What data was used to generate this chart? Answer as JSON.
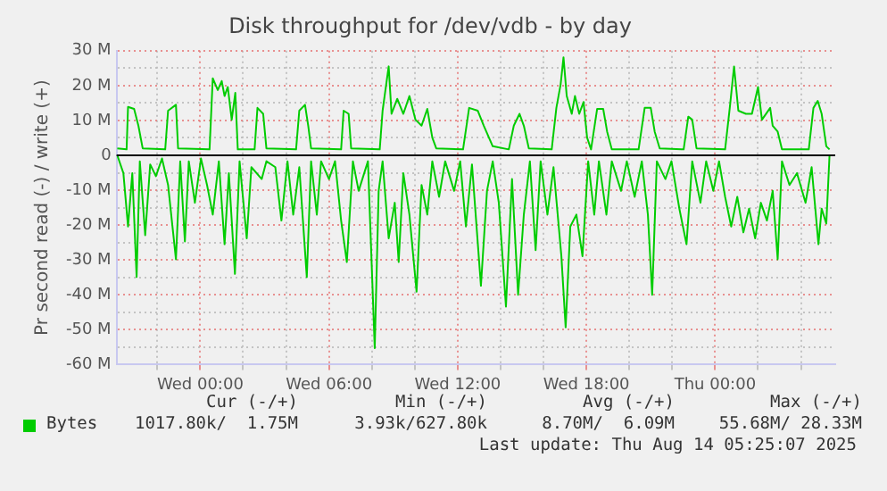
{
  "chart_data": {
    "type": "line",
    "title": "Disk throughput for /dev/vdb - by day",
    "ylabel": "Pr second read (-) / write (+)",
    "xlim": [
      "2025-08-12T20:06",
      "2025-08-14T05:36"
    ],
    "xticks": [
      {
        "value": "2025-08-12T22:00",
        "label": null
      },
      {
        "value": "2025-08-13T00:00",
        "label": "Wed 00:00"
      },
      {
        "value": "2025-08-13T02:00",
        "label": null
      },
      {
        "value": "2025-08-13T04:00",
        "label": null
      },
      {
        "value": "2025-08-13T06:00",
        "label": "Wed 06:00"
      },
      {
        "value": "2025-08-13T08:00",
        "label": null
      },
      {
        "value": "2025-08-13T10:00",
        "label": null
      },
      {
        "value": "2025-08-13T12:00",
        "label": "Wed 12:00"
      },
      {
        "value": "2025-08-13T14:00",
        "label": null
      },
      {
        "value": "2025-08-13T16:00",
        "label": null
      },
      {
        "value": "2025-08-13T18:00",
        "label": "Wed 18:00"
      },
      {
        "value": "2025-08-13T20:00",
        "label": null
      },
      {
        "value": "2025-08-13T22:00",
        "label": null
      },
      {
        "value": "2025-08-14T00:00",
        "label": "Thu 00:00"
      },
      {
        "value": "2025-08-14T02:00",
        "label": null
      },
      {
        "value": "2025-08-14T04:00",
        "label": null
      }
    ],
    "ylim": [
      -60,
      30
    ],
    "yticks": [
      {
        "value": -60,
        "label": "-60 M"
      },
      {
        "value": -55,
        "label": null
      },
      {
        "value": -50,
        "label": "-50 M"
      },
      {
        "value": -45,
        "label": null
      },
      {
        "value": -40,
        "label": "-40 M"
      },
      {
        "value": -35,
        "label": null
      },
      {
        "value": -30,
        "label": "-30 M"
      },
      {
        "value": -25,
        "label": null
      },
      {
        "value": -20,
        "label": "-20 M"
      },
      {
        "value": -15,
        "label": null
      },
      {
        "value": -10,
        "label": "-10 M"
      },
      {
        "value": -5,
        "label": null
      },
      {
        "value": 0,
        "label": "0"
      },
      {
        "value": 5,
        "label": null
      },
      {
        "value": 10,
        "label": "10 M"
      },
      {
        "value": 15,
        "label": null
      },
      {
        "value": 20,
        "label": "20 M"
      },
      {
        "value": 25,
        "label": null
      },
      {
        "value": 30,
        "label": "30 M"
      }
    ],
    "grid": true,
    "legend": "bottom",
    "marker": "none",
    "line_style": "solid",
    "ref_lines": [
      {
        "axis": "y",
        "value": 0,
        "color": "#000000"
      }
    ],
    "series": [
      {
        "name": "Bytes",
        "color": "#00cc00",
        "x": [
          "2025-08-12T20:08",
          "2025-08-12T20:34",
          "2025-08-12T20:38",
          "2025-08-12T20:55",
          "2025-08-12T21:07",
          "2025-08-12T21:19",
          "2025-08-12T22:22",
          "2025-08-12T22:30",
          "2025-08-12T22:52",
          "2025-08-12T22:58",
          "2025-08-13T00:26",
          "2025-08-13T00:35",
          "2025-08-13T00:49",
          "2025-08-13T01:00",
          "2025-08-13T01:08",
          "2025-08-13T01:17",
          "2025-08-13T01:28",
          "2025-08-13T01:38",
          "2025-08-13T01:45",
          "2025-08-13T02:32",
          "2025-08-13T02:40",
          "2025-08-13T02:56",
          "2025-08-13T03:05",
          "2025-08-13T04:28",
          "2025-08-13T04:37",
          "2025-08-13T04:53",
          "2025-08-13T05:02",
          "2025-08-13T05:10",
          "2025-08-13T06:34",
          "2025-08-13T06:41",
          "2025-08-13T06:55",
          "2025-08-13T07:02",
          "2025-08-13T08:22",
          "2025-08-13T08:30",
          "2025-08-13T08:47",
          "2025-08-13T08:55",
          "2025-08-13T09:11",
          "2025-08-13T09:28",
          "2025-08-13T09:45",
          "2025-08-13T10:02",
          "2025-08-13T10:19",
          "2025-08-13T10:35",
          "2025-08-13T10:49",
          "2025-08-13T11:00",
          "2025-08-13T12:15",
          "2025-08-13T12:32",
          "2025-08-13T12:56",
          "2025-08-13T13:13",
          "2025-08-13T13:38",
          "2025-08-13T14:23",
          "2025-08-13T14:37",
          "2025-08-13T14:53",
          "2025-08-13T15:05",
          "2025-08-13T15:19",
          "2025-08-13T16:23",
          "2025-08-13T16:36",
          "2025-08-13T16:48",
          "2025-08-13T16:56",
          "2025-08-13T17:05",
          "2025-08-13T17:19",
          "2025-08-13T17:28",
          "2025-08-13T17:40",
          "2025-08-13T17:52",
          "2025-08-13T18:02",
          "2025-08-13T18:13",
          "2025-08-13T18:30",
          "2025-08-13T18:47",
          "2025-08-13T18:58",
          "2025-08-13T19:11",
          "2025-08-13T20:26",
          "2025-08-13T20:43",
          "2025-08-13T21:00",
          "2025-08-13T21:11",
          "2025-08-13T21:25",
          "2025-08-13T22:32",
          "2025-08-13T22:45",
          "2025-08-13T22:56",
          "2025-08-13T23:08",
          "2025-08-14T00:28",
          "2025-08-14T00:41",
          "2025-08-14T00:53",
          "2025-08-14T01:05",
          "2025-08-14T01:26",
          "2025-08-14T01:43",
          "2025-08-14T02:00",
          "2025-08-14T02:11",
          "2025-08-14T02:34",
          "2025-08-14T02:41",
          "2025-08-14T02:55",
          "2025-08-14T03:07",
          "2025-08-14T04:22",
          "2025-08-14T04:35",
          "2025-08-14T04:47",
          "2025-08-14T04:58",
          "2025-08-14T05:11",
          "2025-08-14T05:20"
        ],
        "values": [
          2.0,
          1.7,
          13.9,
          13.3,
          8.5,
          2.0,
          1.7,
          12.8,
          14.5,
          2.0,
          1.7,
          22.1,
          18.7,
          21.3,
          17.0,
          19.6,
          10.2,
          17.9,
          1.7,
          1.7,
          13.6,
          11.9,
          2.0,
          1.7,
          12.8,
          14.5,
          8.5,
          2.0,
          1.7,
          12.8,
          11.9,
          2.0,
          1.7,
          12.8,
          25.5,
          11.9,
          16.2,
          11.9,
          17.0,
          10.2,
          8.5,
          13.3,
          5.1,
          2.0,
          1.7,
          13.6,
          12.8,
          8.5,
          2.6,
          1.7,
          8.5,
          11.9,
          8.5,
          2.0,
          1.7,
          13.6,
          20.4,
          28.1,
          17.0,
          11.9,
          17.0,
          11.9,
          15.3,
          5.1,
          1.7,
          13.3,
          13.3,
          6.8,
          1.7,
          1.7,
          13.6,
          13.6,
          6.8,
          2.0,
          1.7,
          11.1,
          10.2,
          2.0,
          1.7,
          13.6,
          25.5,
          12.8,
          11.9,
          11.9,
          19.6,
          10.2,
          13.6,
          8.5,
          6.8,
          1.7,
          1.7,
          13.6,
          15.6,
          11.9,
          2.6,
          1.7
        ]
      },
      {
        "color": "#00cc00",
        "x": [
          "2025-08-12T20:08",
          "2025-08-12T20:25",
          "2025-08-12T20:38",
          "2025-08-12T20:50",
          "2025-08-12T21:02",
          "2025-08-12T21:11",
          "2025-08-12T21:26",
          "2025-08-12T21:40",
          "2025-08-12T21:56",
          "2025-08-12T22:13",
          "2025-08-12T22:30",
          "2025-08-12T22:52",
          "2025-08-12T23:04",
          "2025-08-12T23:17",
          "2025-08-12T23:28",
          "2025-08-12T23:45",
          "2025-08-13T00:02",
          "2025-08-13T00:19",
          "2025-08-13T00:35",
          "2025-08-13T00:52",
          "2025-08-13T01:08",
          "2025-08-13T01:20",
          "2025-08-13T01:37",
          "2025-08-13T01:50",
          "2025-08-13T02:10",
          "2025-08-13T02:23",
          "2025-08-13T02:52",
          "2025-08-13T03:05",
          "2025-08-13T03:30",
          "2025-08-13T03:47",
          "2025-08-13T04:04",
          "2025-08-13T04:20",
          "2025-08-13T04:37",
          "2025-08-13T04:58",
          "2025-08-13T05:10",
          "2025-08-13T05:26",
          "2025-08-13T05:38",
          "2025-08-13T06:00",
          "2025-08-13T06:17",
          "2025-08-13T06:34",
          "2025-08-13T06:50",
          "2025-08-13T07:07",
          "2025-08-13T07:23",
          "2025-08-13T07:49",
          "2025-08-13T08:08",
          "2025-08-13T08:19",
          "2025-08-13T08:30",
          "2025-08-13T08:47",
          "2025-08-13T09:04",
          "2025-08-13T09:15",
          "2025-08-13T09:28",
          "2025-08-13T09:45",
          "2025-08-13T10:05",
          "2025-08-13T10:19",
          "2025-08-13T10:35",
          "2025-08-13T10:49",
          "2025-08-13T11:08",
          "2025-08-13T11:25",
          "2025-08-13T11:50",
          "2025-08-13T12:07",
          "2025-08-13T12:23",
          "2025-08-13T12:40",
          "2025-08-13T13:05",
          "2025-08-13T13:22",
          "2025-08-13T13:38",
          "2025-08-13T13:55",
          "2025-08-13T14:15",
          "2025-08-13T14:32",
          "2025-08-13T14:49",
          "2025-08-13T15:05",
          "2025-08-13T15:22",
          "2025-08-13T15:38",
          "2025-08-13T15:52",
          "2025-08-13T16:11",
          "2025-08-13T16:28",
          "2025-08-13T16:50",
          "2025-08-13T17:02",
          "2025-08-13T17:15",
          "2025-08-13T17:32",
          "2025-08-13T17:49",
          "2025-08-13T18:05",
          "2025-08-13T18:22",
          "2025-08-13T18:35",
          "2025-08-13T18:56",
          "2025-08-13T19:11",
          "2025-08-13T19:37",
          "2025-08-13T19:53",
          "2025-08-13T20:15",
          "2025-08-13T20:35",
          "2025-08-13T20:52",
          "2025-08-13T21:04",
          "2025-08-13T21:17",
          "2025-08-13T21:41",
          "2025-08-13T21:58",
          "2025-08-13T22:20",
          "2025-08-13T22:40",
          "2025-08-13T22:56",
          "2025-08-13T23:19",
          "2025-08-13T23:35",
          "2025-08-13T23:55",
          "2025-08-14T00:11",
          "2025-08-14T00:28",
          "2025-08-14T00:45",
          "2025-08-14T01:02",
          "2025-08-14T01:19",
          "2025-08-14T01:35",
          "2025-08-14T01:52",
          "2025-08-14T02:08",
          "2025-08-14T02:25",
          "2025-08-14T02:41",
          "2025-08-14T02:55",
          "2025-08-14T03:07",
          "2025-08-14T03:28",
          "2025-08-14T03:49",
          "2025-08-14T04:13",
          "2025-08-14T04:30",
          "2025-08-14T04:49",
          "2025-08-14T04:58",
          "2025-08-14T05:11",
          "2025-08-14T05:20"
        ],
        "values": [
          0,
          -5.1,
          -20.4,
          -5.1,
          -34.9,
          -1.7,
          -22.9,
          -2.6,
          -6.0,
          -0.9,
          -8.5,
          -29.8,
          -1.7,
          -24.7,
          -1.7,
          -13.6,
          -0.9,
          -8.5,
          -17.0,
          -1.7,
          -25.5,
          -5.1,
          -34.0,
          -1.7,
          -23.8,
          -3.4,
          -6.8,
          -1.7,
          -3.4,
          -18.7,
          -1.7,
          -17.0,
          -3.4,
          -34.9,
          -1.7,
          -17.0,
          -1.7,
          -6.8,
          -1.7,
          -18.7,
          -30.6,
          -1.7,
          -10.2,
          -1.7,
          -55.3,
          -10.2,
          -1.7,
          -23.8,
          -13.6,
          -30.6,
          -5.1,
          -17.0,
          -39.1,
          -8.5,
          -17.0,
          -1.7,
          -11.9,
          -1.7,
          -10.2,
          -1.7,
          -20.4,
          -2.6,
          -37.4,
          -10.2,
          -1.7,
          -13.6,
          -43.4,
          -6.8,
          -40.0,
          -17.0,
          -1.7,
          -27.2,
          -1.7,
          -17.0,
          -3.4,
          -28.9,
          -49.3,
          -20.4,
          -17.0,
          -28.9,
          -1.7,
          -17.0,
          -1.7,
          -17.0,
          -1.7,
          -10.2,
          -1.7,
          -11.9,
          -1.7,
          -17.0,
          -40.0,
          -1.7,
          -6.8,
          -1.7,
          -15.3,
          -25.5,
          -1.7,
          -13.6,
          -1.7,
          -10.2,
          -1.7,
          -11.9,
          -20.4,
          -11.9,
          -22.1,
          -15.3,
          -23.8,
          -13.6,
          -18.7,
          -10.2,
          -29.8,
          -1.7,
          -8.5,
          -5.1,
          -13.6,
          -3.4,
          -25.5,
          -15.3,
          -19.6,
          0
        ]
      }
    ],
    "annotations": [
      "Cur (-/+)",
      "Min (-/+)",
      "Avg (-/+)",
      "Max (-/+)",
      "1017.80k/  1.75M",
      "3.93k/627.80k",
      "8.70M/  6.09M",
      "55.68M/ 28.33M",
      "Last update: Thu Aug 14 05:25:07 2025"
    ]
  }
}
